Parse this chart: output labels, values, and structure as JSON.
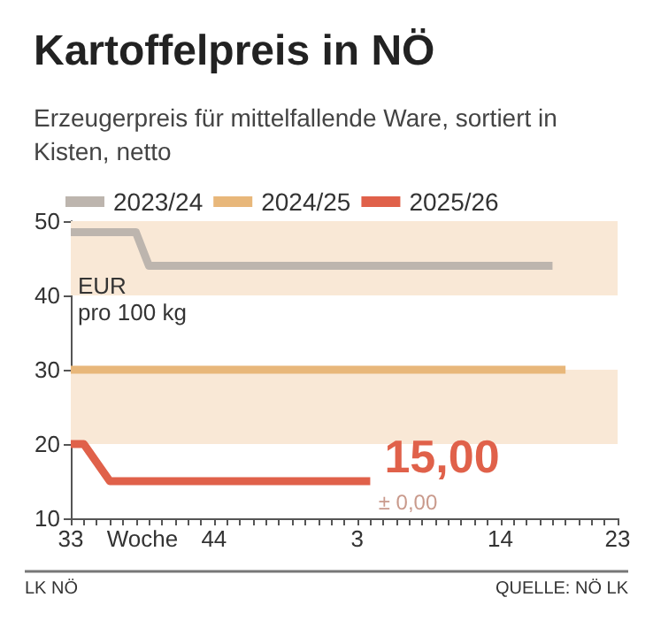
{
  "chart_data": {
    "type": "line",
    "title": "Kartoffelpreis in NÖ",
    "subtitle": "Erzeugerpreis für mittelfallende Ware, sortiert in Kisten, netto",
    "xlabel": "Woche",
    "ylabel": "EUR\npro 100 kg",
    "categories": [
      "33",
      null,
      null,
      null,
      null,
      null,
      null,
      null,
      null,
      null,
      null,
      "44",
      null,
      null,
      null,
      null,
      null,
      null,
      null,
      null,
      null,
      null,
      "3",
      null,
      null,
      null,
      null,
      null,
      null,
      null,
      null,
      null,
      null,
      "14",
      null,
      null,
      null,
      null,
      null,
      null,
      null,
      null,
      "23"
    ],
    "series": [
      {
        "name": "2023/24",
        "color": "#bdb5ae",
        "values": [
          48.5,
          48.5,
          48.5,
          48.5,
          48.5,
          48.5,
          44,
          44,
          44,
          44,
          44,
          44,
          44,
          44,
          44,
          44,
          44,
          44,
          44,
          44,
          44,
          44,
          44,
          44,
          44,
          44,
          44,
          44,
          44,
          44,
          44,
          44,
          44,
          44,
          44,
          44,
          44,
          44,
          null,
          null,
          null,
          null,
          null
        ]
      },
      {
        "name": "2024/25",
        "color": "#e8b77a",
        "values": [
          30,
          30,
          30,
          30,
          30,
          30,
          30,
          30,
          30,
          30,
          30,
          30,
          30,
          30,
          30,
          30,
          30,
          30,
          30,
          30,
          30,
          30,
          30,
          30,
          30,
          30,
          30,
          30,
          30,
          30,
          30,
          30,
          30,
          30,
          30,
          30,
          30,
          30,
          30,
          null,
          null,
          null,
          null
        ]
      },
      {
        "name": "2025/26",
        "color": "#e0614a",
        "values": [
          20,
          20,
          17.5,
          15,
          15,
          15,
          15,
          15,
          15,
          15,
          15,
          15,
          15,
          15,
          15,
          15,
          15,
          15,
          15,
          15,
          15,
          15,
          15,
          15,
          null,
          null,
          null,
          null,
          null,
          null,
          null,
          null,
          null,
          null,
          null,
          null,
          null,
          null,
          null,
          null,
          null,
          null,
          null
        ],
        "value_labels": [
          null,
          null,
          null,
          null,
          null,
          null,
          null,
          null,
          null,
          null,
          null,
          null,
          null,
          null,
          null,
          null,
          null,
          null,
          null,
          null,
          null,
          null,
          null,
          "15,00",
          null,
          null,
          null,
          null,
          null,
          null,
          null,
          null,
          null,
          null,
          null,
          null,
          null,
          null,
          null,
          null,
          null,
          null,
          null
        ]
      }
    ],
    "ylim": [
      10,
      50
    ],
    "yticks": [
      10,
      20,
      30,
      40,
      50
    ],
    "bands": [
      {
        "axis": "y",
        "from": 40,
        "to": 50,
        "color": "#f9e8d6"
      },
      {
        "axis": "y",
        "from": 20,
        "to": 30,
        "color": "#f9e8d6"
      }
    ],
    "annotations": [
      {
        "text": "± 0,00",
        "x": "3",
        "y": 15
      },
      "LK NÖ",
      "QUELLE: NÖ LK"
    ],
    "grid": false,
    "legend": "top left",
    "marker": "none",
    "line_style": "solid"
  }
}
